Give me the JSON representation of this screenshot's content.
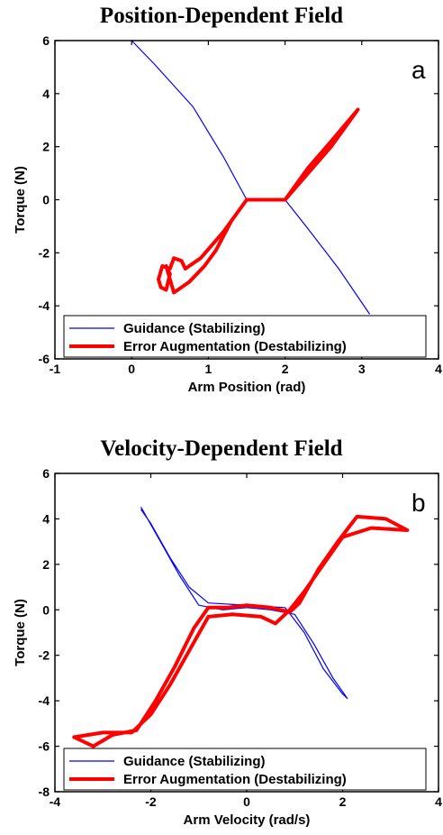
{
  "chart_data": [
    {
      "type": "line",
      "title": "Position-Dependent Field",
      "panel_letter": "a",
      "xlabel": "Arm Position (rad)",
      "ylabel": "Torque (N)",
      "xlim": [
        -1,
        4
      ],
      "ylim": [
        -6,
        6
      ],
      "xticks": [
        -1,
        0,
        1,
        2,
        3,
        4
      ],
      "yticks": [
        -6,
        -4,
        -2,
        0,
        2,
        4,
        6
      ],
      "grid": false,
      "legend": "bottom",
      "series": [
        {
          "name": "Guidance (Stabilizing)",
          "color": "#0000ff",
          "x": [
            0.0,
            0.3,
            0.8,
            1.2,
            1.5,
            2.0,
            2.3,
            2.7,
            3.1
          ],
          "y": [
            6.0,
            5.1,
            3.5,
            1.6,
            0.0,
            0.0,
            -1.1,
            -2.6,
            -4.3
          ]
        },
        {
          "name": "Error Augmentation (Destabilizing)",
          "color": "#ff0000",
          "x": [
            1.5,
            1.2,
            0.9,
            0.7,
            0.65,
            0.55,
            0.5,
            0.4,
            0.35,
            0.38,
            0.45,
            0.5,
            0.45,
            0.55,
            0.65,
            0.75,
            0.85,
            0.95,
            1.1,
            1.3,
            1.5,
            2.0,
            2.3,
            2.6,
            2.95,
            2.9,
            2.6,
            2.3,
            2.0
          ],
          "y": [
            0.0,
            -1.2,
            -2.2,
            -2.6,
            -2.3,
            -2.2,
            -2.6,
            -2.5,
            -3.0,
            -3.3,
            -3.4,
            -2.8,
            -2.5,
            -3.5,
            -3.3,
            -3.1,
            -2.8,
            -2.5,
            -1.9,
            -0.8,
            0.0,
            0.0,
            1.2,
            2.2,
            3.4,
            3.2,
            2.0,
            1.0,
            0.0
          ]
        }
      ]
    },
    {
      "type": "line",
      "title": "Velocity-Dependent Field",
      "panel_letter": "b",
      "xlabel": "Arm Velocity (rad/s)",
      "ylabel": "Torque (N)",
      "xlim": [
        -4,
        4
      ],
      "ylim": [
        -8,
        6
      ],
      "xticks": [
        -4,
        -2,
        0,
        2,
        4
      ],
      "yticks": [
        -8,
        -6,
        -4,
        -2,
        0,
        2,
        4,
        6
      ],
      "grid": false,
      "legend": "bottom",
      "series": [
        {
          "name": "Guidance (Stabilizing)",
          "color": "#0000ff",
          "x": [
            -2.2,
            -1.8,
            -1.4,
            -1.0,
            -0.5,
            0.0,
            0.5,
            1.0,
            1.4,
            1.8,
            2.1,
            2.0,
            1.6,
            1.2,
            0.8,
            0.0,
            -0.8,
            -1.2,
            -1.6,
            -2.0,
            -2.2
          ],
          "y": [
            4.5,
            3.0,
            1.5,
            0.2,
            0.0,
            0.1,
            0.0,
            -0.2,
            -1.5,
            -3.0,
            -3.9,
            -3.7,
            -2.6,
            -1.0,
            0.1,
            0.2,
            0.3,
            1.0,
            2.3,
            3.8,
            4.4
          ]
        },
        {
          "name": "Error Augmentation (Destabilizing)",
          "color": "#ff0000",
          "x": [
            -3.6,
            -3.2,
            -2.8,
            -2.3,
            -1.9,
            -1.5,
            -1.1,
            -0.8,
            -0.4,
            0.0,
            0.5,
            0.9,
            1.1,
            1.5,
            1.9,
            2.3,
            2.9,
            3.35,
            2.6,
            2.0,
            1.6,
            1.2,
            0.9,
            0.6,
            0.3,
            -0.3,
            -0.8,
            -1.2,
            -1.6,
            -2.0,
            -2.4,
            -3.0,
            -3.6
          ],
          "y": [
            -5.6,
            -6.0,
            -5.5,
            -5.3,
            -4.0,
            -2.5,
            -0.8,
            0.1,
            0.1,
            0.2,
            0.1,
            -0.1,
            0.3,
            1.8,
            3.0,
            4.1,
            4.0,
            3.5,
            3.6,
            3.2,
            2.0,
            0.8,
            0.0,
            -0.6,
            -0.3,
            -0.2,
            -0.3,
            -1.8,
            -3.3,
            -4.6,
            -5.4,
            -5.4,
            -5.6
          ]
        }
      ]
    }
  ]
}
